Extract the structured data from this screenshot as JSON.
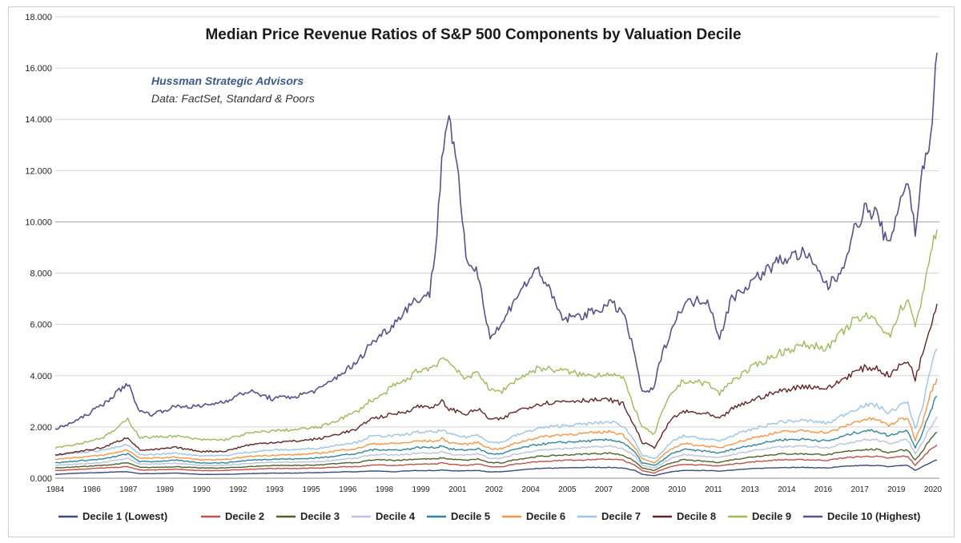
{
  "chart_data": {
    "type": "line",
    "title": "Median Price Revenue Ratios of S&P 500 Components by Valuation Decile",
    "credit_line1": "Hussman Strategic Advisors",
    "credit_line2": "Data: FactSet, Standard & Poors",
    "xlabel": "",
    "ylabel": "",
    "ylim": [
      0,
      18
    ],
    "yticks": [
      "0.000",
      "2.000",
      "4.000",
      "6.000",
      "8.000",
      "10.000",
      "12.000",
      "14.000",
      "16.000",
      "18.000"
    ],
    "xticks": [
      "1984",
      "1986",
      "1987",
      "1989",
      "1990",
      "1992",
      "1993",
      "1995",
      "1996",
      "1998",
      "1999",
      "2001",
      "2002",
      "2004",
      "2005",
      "2007",
      "2008",
      "2010",
      "2011",
      "2013",
      "2014",
      "2016",
      "2017",
      "2019",
      "2020"
    ],
    "xlim": [
      1984,
      2020.6
    ],
    "grid": true,
    "legend_position": "bottom",
    "x": [
      1984,
      1985,
      1986,
      1986.5,
      1987,
      1987.5,
      1988,
      1989,
      1990,
      1991,
      1992,
      1993,
      1994,
      1995,
      1996,
      1996.5,
      1997,
      1997.5,
      1998,
      1998.5,
      1999,
      1999.5,
      1999.8,
      2000,
      2000.3,
      2000.7,
      2001,
      2001.5,
      2002,
      2002.5,
      2003,
      2004,
      2005,
      2006,
      2007,
      2007.5,
      2008,
      2008.3,
      2008.8,
      2009,
      2009.5,
      2010,
      2011,
      2011.5,
      2012,
      2013,
      2014,
      2015,
      2016,
      2016.5,
      2017,
      2017.5,
      2018,
      2018.5,
      2019,
      2019.3,
      2019.6,
      2019.9,
      2020.1,
      2020.3,
      2020.5
    ],
    "series": [
      {
        "name": "Decile 1 (Lowest)",
        "color": "#3a4a7a",
        "values": [
          0.15,
          0.2,
          0.22,
          0.25,
          0.25,
          0.18,
          0.18,
          0.2,
          0.15,
          0.15,
          0.18,
          0.2,
          0.2,
          0.22,
          0.25,
          0.25,
          0.28,
          0.28,
          0.25,
          0.28,
          0.3,
          0.3,
          0.3,
          0.32,
          0.3,
          0.28,
          0.3,
          0.3,
          0.25,
          0.25,
          0.3,
          0.38,
          0.4,
          0.42,
          0.42,
          0.4,
          0.3,
          0.15,
          0.1,
          0.15,
          0.25,
          0.3,
          0.3,
          0.28,
          0.32,
          0.38,
          0.42,
          0.42,
          0.4,
          0.45,
          0.48,
          0.5,
          0.5,
          0.45,
          0.5,
          0.5,
          0.3,
          0.45,
          0.55,
          0.65,
          0.7
        ]
      },
      {
        "name": "Decile 2",
        "color": "#c0504d",
        "values": [
          0.3,
          0.35,
          0.4,
          0.42,
          0.45,
          0.32,
          0.32,
          0.35,
          0.3,
          0.3,
          0.35,
          0.38,
          0.38,
          0.4,
          0.45,
          0.45,
          0.5,
          0.52,
          0.5,
          0.52,
          0.55,
          0.55,
          0.55,
          0.6,
          0.55,
          0.52,
          0.5,
          0.55,
          0.45,
          0.45,
          0.55,
          0.65,
          0.7,
          0.72,
          0.75,
          0.7,
          0.5,
          0.3,
          0.2,
          0.3,
          0.45,
          0.55,
          0.5,
          0.48,
          0.55,
          0.65,
          0.72,
          0.72,
          0.7,
          0.78,
          0.82,
          0.85,
          0.85,
          0.78,
          0.85,
          0.85,
          0.5,
          0.8,
          1.0,
          1.2,
          1.3
        ]
      },
      {
        "name": "Decile 3",
        "color": "#4f6228",
        "values": [
          0.4,
          0.45,
          0.5,
          0.55,
          0.6,
          0.42,
          0.42,
          0.45,
          0.4,
          0.4,
          0.45,
          0.5,
          0.5,
          0.52,
          0.6,
          0.6,
          0.7,
          0.72,
          0.7,
          0.72,
          0.75,
          0.75,
          0.75,
          0.8,
          0.75,
          0.72,
          0.7,
          0.75,
          0.6,
          0.6,
          0.72,
          0.85,
          0.9,
          0.95,
          0.98,
          0.9,
          0.65,
          0.4,
          0.3,
          0.4,
          0.6,
          0.72,
          0.65,
          0.62,
          0.72,
          0.85,
          0.95,
          0.95,
          0.92,
          1.0,
          1.08,
          1.12,
          1.12,
          1.0,
          1.1,
          1.1,
          0.7,
          1.05,
          1.35,
          1.6,
          1.8
        ]
      },
      {
        "name": "Decile 4",
        "color": "#b8c4dc",
        "values": [
          0.5,
          0.55,
          0.62,
          0.7,
          0.78,
          0.55,
          0.55,
          0.58,
          0.5,
          0.5,
          0.58,
          0.62,
          0.62,
          0.65,
          0.75,
          0.78,
          0.9,
          0.92,
          0.9,
          0.92,
          0.98,
          0.98,
          0.98,
          1.05,
          0.95,
          0.9,
          0.9,
          0.95,
          0.78,
          0.78,
          0.92,
          1.1,
          1.15,
          1.2,
          1.25,
          1.15,
          0.85,
          0.5,
          0.4,
          0.5,
          0.78,
          0.92,
          0.85,
          0.8,
          0.92,
          1.1,
          1.22,
          1.25,
          1.2,
          1.32,
          1.42,
          1.5,
          1.5,
          1.35,
          1.48,
          1.48,
          0.95,
          1.4,
          1.8,
          2.1,
          2.4
        ]
      },
      {
        "name": "Decile 5",
        "color": "#31859c",
        "values": [
          0.6,
          0.68,
          0.75,
          0.85,
          0.95,
          0.65,
          0.65,
          0.7,
          0.6,
          0.6,
          0.7,
          0.75,
          0.75,
          0.8,
          0.92,
          0.95,
          1.1,
          1.12,
          1.1,
          1.12,
          1.2,
          1.2,
          1.2,
          1.28,
          1.15,
          1.1,
          1.1,
          1.15,
          0.95,
          0.95,
          1.12,
          1.32,
          1.4,
          1.45,
          1.5,
          1.4,
          1.0,
          0.6,
          0.5,
          0.6,
          0.95,
          1.12,
          1.05,
          0.98,
          1.12,
          1.32,
          1.5,
          1.52,
          1.45,
          1.6,
          1.75,
          1.85,
          1.85,
          1.65,
          1.82,
          1.85,
          1.2,
          1.75,
          2.3,
          2.8,
          3.2
        ]
      },
      {
        "name": "Decile 6",
        "color": "#f79646",
        "values": [
          0.75,
          0.82,
          0.9,
          1.0,
          1.1,
          0.78,
          0.78,
          0.82,
          0.72,
          0.72,
          0.85,
          0.9,
          0.92,
          0.98,
          1.12,
          1.15,
          1.32,
          1.35,
          1.35,
          1.38,
          1.45,
          1.45,
          1.45,
          1.55,
          1.4,
          1.35,
          1.32,
          1.4,
          1.15,
          1.15,
          1.35,
          1.6,
          1.7,
          1.75,
          1.82,
          1.7,
          1.2,
          0.75,
          0.6,
          0.75,
          1.15,
          1.35,
          1.25,
          1.18,
          1.35,
          1.6,
          1.8,
          1.85,
          1.78,
          1.95,
          2.15,
          2.3,
          2.3,
          2.05,
          2.3,
          2.35,
          1.5,
          2.2,
          2.9,
          3.5,
          3.9
        ]
      },
      {
        "name": "Decile 7",
        "color": "#9dc3e6",
        "values": [
          0.9,
          1.0,
          1.1,
          1.2,
          1.3,
          0.92,
          0.92,
          0.98,
          0.88,
          0.88,
          1.02,
          1.1,
          1.12,
          1.18,
          1.35,
          1.4,
          1.62,
          1.65,
          1.65,
          1.7,
          1.8,
          1.8,
          1.8,
          1.9,
          1.72,
          1.65,
          1.6,
          1.7,
          1.4,
          1.4,
          1.65,
          1.95,
          2.05,
          2.12,
          2.2,
          2.05,
          1.45,
          0.9,
          0.75,
          0.9,
          1.4,
          1.65,
          1.52,
          1.45,
          1.65,
          1.95,
          2.2,
          2.25,
          2.15,
          2.4,
          2.65,
          2.85,
          2.85,
          2.55,
          2.85,
          2.95,
          1.9,
          2.8,
          3.7,
          4.5,
          5.05
        ]
      },
      {
        "name": "Decile 8",
        "color": "#632523",
        "values": [
          0.9,
          1.05,
          1.2,
          1.4,
          1.6,
          1.1,
          1.1,
          1.2,
          1.05,
          1.05,
          1.3,
          1.4,
          1.45,
          1.55,
          1.8,
          1.9,
          2.3,
          2.4,
          2.5,
          2.6,
          2.8,
          2.8,
          2.8,
          3.0,
          2.7,
          2.6,
          2.5,
          2.7,
          2.3,
          2.3,
          2.6,
          2.9,
          3.0,
          3.05,
          3.05,
          2.9,
          2.0,
          1.4,
          1.2,
          1.5,
          2.3,
          2.6,
          2.5,
          2.3,
          2.7,
          3.1,
          3.4,
          3.6,
          3.5,
          3.8,
          4.1,
          4.3,
          4.3,
          4.0,
          4.4,
          4.6,
          3.9,
          4.8,
          5.6,
          6.2,
          6.8
        ]
      },
      {
        "name": "Decile 9",
        "color": "#9bbb59",
        "values": [
          1.2,
          1.35,
          1.6,
          1.9,
          2.3,
          1.6,
          1.6,
          1.65,
          1.5,
          1.5,
          1.75,
          1.85,
          1.9,
          2.0,
          2.4,
          2.6,
          3.0,
          3.2,
          3.6,
          3.8,
          4.2,
          4.3,
          4.4,
          4.8,
          4.5,
          4.2,
          3.8,
          4.2,
          3.4,
          3.4,
          3.8,
          4.3,
          4.2,
          4.0,
          4.1,
          3.9,
          2.7,
          2.0,
          1.7,
          2.3,
          3.3,
          3.8,
          3.7,
          3.3,
          3.8,
          4.4,
          4.9,
          5.2,
          5.1,
          5.6,
          6.1,
          6.3,
          6.2,
          5.5,
          6.6,
          7.0,
          5.8,
          7.2,
          8.2,
          9.0,
          9.7
        ]
      },
      {
        "name": "Decile 10 (Highest)",
        "color": "#5b4f8c",
        "values": [
          1.9,
          2.3,
          2.9,
          3.3,
          3.7,
          2.6,
          2.5,
          2.8,
          2.8,
          3.0,
          3.4,
          3.1,
          3.2,
          3.5,
          4.2,
          4.5,
          5.2,
          5.6,
          6.0,
          6.6,
          7.0,
          7.2,
          9.5,
          12.5,
          14.3,
          11.5,
          8.6,
          8.0,
          5.5,
          6.0,
          7.0,
          8.2,
          6.2,
          6.4,
          6.8,
          6.5,
          4.8,
          3.3,
          3.5,
          4.5,
          5.8,
          6.8,
          7.0,
          5.5,
          7.0,
          7.8,
          8.5,
          8.8,
          7.5,
          8.0,
          9.5,
          10.5,
          10.3,
          9.0,
          11.0,
          11.6,
          9.6,
          12.0,
          12.7,
          14.0,
          16.6
        ]
      }
    ]
  }
}
